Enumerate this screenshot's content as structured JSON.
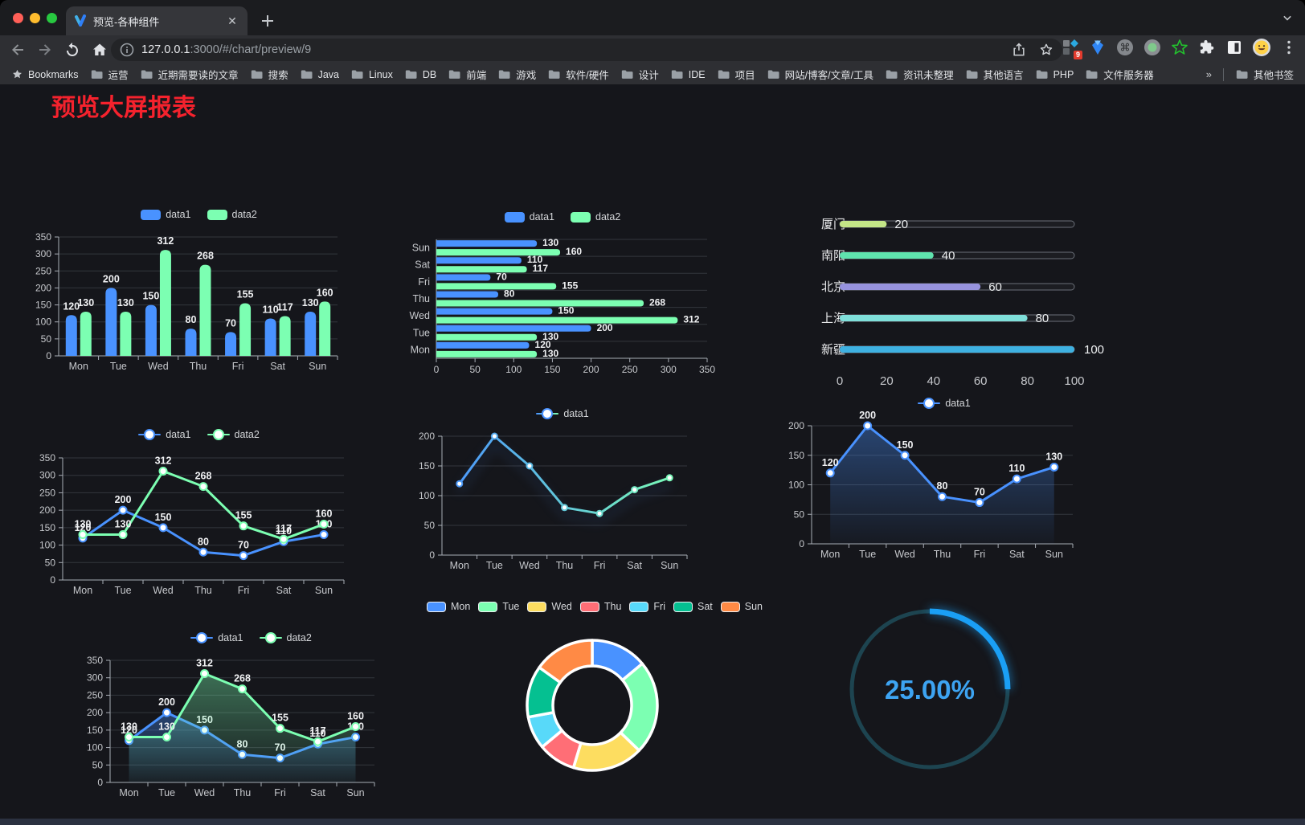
{
  "browser": {
    "tab_title": "预览-各种组件",
    "url_host": "127.0.0.1",
    "url_rest": ":3000/#/chart/preview/9",
    "extension_badge": "9",
    "bookmarks_bar": {
      "root_label": "Bookmarks",
      "folders": [
        "运营",
        "近期需要读的文章",
        "搜索",
        "Java",
        "Linux",
        "DB",
        "前端",
        "游戏",
        "软件/硬件",
        "设计",
        "IDE",
        "项目",
        "网站/博客/文章/工具",
        "资讯未整理",
        "其他语言",
        "PHP",
        "文件服务器"
      ],
      "overflow": "»",
      "other": "其他书签"
    }
  },
  "page": {
    "title": "预览大屏报表",
    "title_color": "#f5222d",
    "background": "#15161b"
  },
  "chart_data": [
    {
      "id": "c1",
      "name": "grouped-bar-vertical",
      "type": "bar",
      "orientation": "vertical",
      "categories": [
        "Mon",
        "Tue",
        "Wed",
        "Thu",
        "Fri",
        "Sat",
        "Sun"
      ],
      "series": [
        {
          "name": "data1",
          "color": "#4992ff",
          "values": [
            120,
            200,
            150,
            80,
            70,
            110,
            130
          ]
        },
        {
          "name": "data2",
          "color": "#7cffb2",
          "values": [
            130,
            130,
            312,
            268,
            155,
            117,
            160
          ]
        }
      ],
      "ylim": [
        0,
        350
      ],
      "ytick_step": 50,
      "data_labels": true,
      "legend_position": "top",
      "grid": true
    },
    {
      "id": "c2",
      "name": "grouped-bar-horizontal",
      "type": "bar",
      "orientation": "horizontal",
      "categories": [
        "Mon",
        "Tue",
        "Wed",
        "Thu",
        "Fri",
        "Sat",
        "Sun"
      ],
      "series": [
        {
          "name": "data1",
          "color": "#4992ff",
          "values": [
            120,
            200,
            150,
            80,
            70,
            110,
            130
          ]
        },
        {
          "name": "data2",
          "color": "#7cffb2",
          "values": [
            130,
            130,
            312,
            268,
            155,
            117,
            160
          ]
        }
      ],
      "xlim": [
        0,
        350
      ],
      "xtick_step": 50,
      "data_labels": true,
      "legend_position": "top",
      "grid": true
    },
    {
      "id": "c3",
      "name": "capsule-progress-bars",
      "type": "bar",
      "subtype": "progress",
      "rows": [
        {
          "label": "厦门",
          "value": 20,
          "color": "#c4e687"
        },
        {
          "label": "南阳",
          "value": 40,
          "color": "#5fe3ae"
        },
        {
          "label": "北京",
          "value": 60,
          "color": "#9793de"
        },
        {
          "label": "上海",
          "value": 80,
          "color": "#7fdfda"
        },
        {
          "label": "新疆",
          "value": 100,
          "color": "#3eb1e1"
        }
      ],
      "xlim": [
        0,
        100
      ],
      "xticks": [
        0,
        20,
        40,
        60,
        80,
        100
      ]
    },
    {
      "id": "c4",
      "name": "line-two-series",
      "type": "line",
      "categories": [
        "Mon",
        "Tue",
        "Wed",
        "Thu",
        "Fri",
        "Sat",
        "Sun"
      ],
      "series": [
        {
          "name": "data1",
          "color": "#4992ff",
          "values": [
            120,
            200,
            150,
            80,
            70,
            110,
            130
          ]
        },
        {
          "name": "data2",
          "color": "#7cffb2",
          "values": [
            130,
            130,
            312,
            268,
            155,
            117,
            160
          ]
        }
      ],
      "ylim": [
        0,
        350
      ],
      "ytick_step": 50,
      "data_labels": true,
      "markers": true,
      "legend_position": "top",
      "grid": true
    },
    {
      "id": "c5",
      "name": "line-gradient",
      "type": "line",
      "categories": [
        "Mon",
        "Tue",
        "Wed",
        "Thu",
        "Fri",
        "Sat",
        "Sun"
      ],
      "series": [
        {
          "name": "data1",
          "gradient": [
            "#4992ff",
            "#7cffb2"
          ],
          "values": [
            120,
            200,
            150,
            80,
            70,
            110,
            130
          ]
        }
      ],
      "ylim": [
        0,
        200
      ],
      "ytick_step": 50,
      "data_labels": false,
      "markers": true,
      "legend_position": "top",
      "grid": true
    },
    {
      "id": "c6",
      "name": "area-single-series",
      "type": "area",
      "categories": [
        "Mon",
        "Tue",
        "Wed",
        "Thu",
        "Fri",
        "Sat",
        "Sun"
      ],
      "series": [
        {
          "name": "data1",
          "color": "#4992ff",
          "values": [
            120,
            200,
            150,
            80,
            70,
            110,
            130
          ],
          "area": true
        }
      ],
      "ylim": [
        0,
        200
      ],
      "ytick_step": 50,
      "data_labels": true,
      "markers": true,
      "legend_position": "top",
      "grid": true
    },
    {
      "id": "c7",
      "name": "area-two-series",
      "type": "area",
      "categories": [
        "Mon",
        "Tue",
        "Wed",
        "Thu",
        "Fri",
        "Sat",
        "Sun"
      ],
      "series": [
        {
          "name": "data1",
          "color": "#4992ff",
          "values": [
            120,
            200,
            150,
            80,
            70,
            110,
            130
          ],
          "area": true
        },
        {
          "name": "data2",
          "color": "#7cffb2",
          "values": [
            130,
            130,
            312,
            268,
            155,
            117,
            160
          ],
          "area": true
        }
      ],
      "ylim": [
        0,
        350
      ],
      "ytick_step": 50,
      "data_labels": true,
      "markers": true,
      "legend_position": "top",
      "grid": true
    },
    {
      "id": "c8",
      "name": "donut-pie",
      "type": "pie",
      "inner_radius": "60%",
      "labels": [
        "Mon",
        "Tue",
        "Wed",
        "Thu",
        "Fri",
        "Sat",
        "Sun"
      ],
      "values": [
        120,
        200,
        150,
        80,
        70,
        110,
        130
      ],
      "colors": [
        "#4992ff",
        "#7cffb2",
        "#fddd60",
        "#ff6e76",
        "#58d9f9",
        "#05c091",
        "#ff8a45"
      ],
      "legend_position": "top"
    },
    {
      "id": "c9",
      "name": "circular-progress-gauge",
      "type": "gauge",
      "value": 25,
      "max": 100,
      "display": "25.00%",
      "color": "#1a9ff5",
      "track_color": "#1d4450",
      "text_color": "#3da4f2"
    }
  ]
}
